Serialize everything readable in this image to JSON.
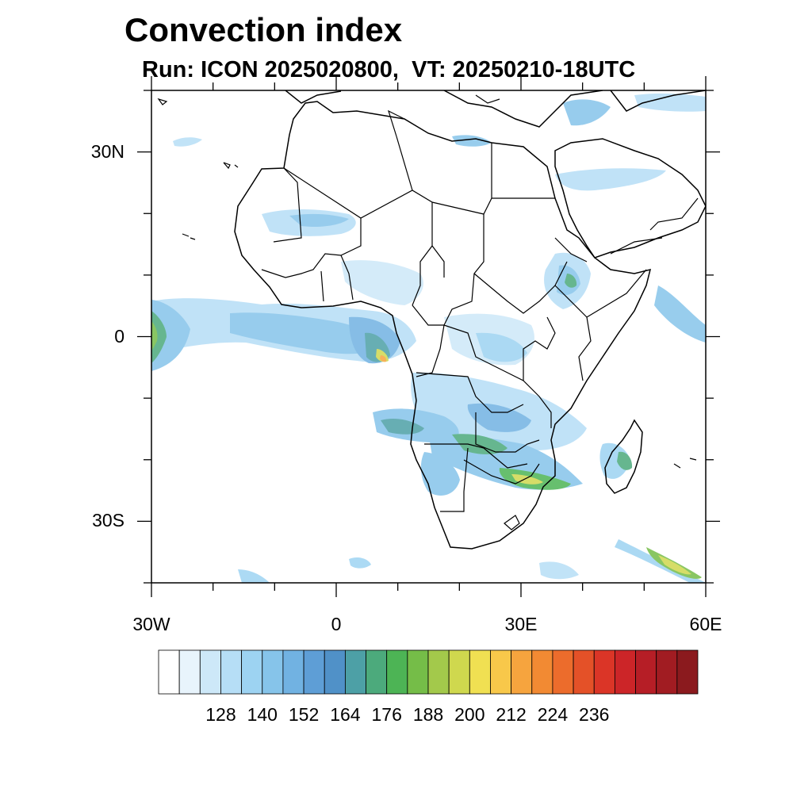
{
  "title": "Convection index",
  "subtitle": "Run: ICON 2025020800,  VT: 20250210-18UTC",
  "map": {
    "lon_range": [
      -30,
      60
    ],
    "lat_range": [
      -40,
      40
    ],
    "lon_ticks": [
      {
        "value": -30,
        "label": "30W"
      },
      {
        "value": 0,
        "label": "0"
      },
      {
        "value": 30,
        "label": "30E"
      },
      {
        "value": 60,
        "label": "60E"
      }
    ],
    "lat_ticks": [
      {
        "value": 30,
        "label": "30N"
      },
      {
        "value": 0,
        "label": "0"
      },
      {
        "value": -30,
        "label": "30S"
      }
    ],
    "coastline_color": "#000000",
    "border_color": "#000000"
  },
  "colorbar": {
    "colors": [
      "#ffffff",
      "#e8f4fc",
      "#cde8f8",
      "#b6def6",
      "#9dd3f2",
      "#86c4ea",
      "#71b2e2",
      "#5e9ed6",
      "#5091c8",
      "#4da0a6",
      "#4caa7c",
      "#4db455",
      "#75bd48",
      "#a3c94b",
      "#cfd84e",
      "#f0e052",
      "#f8c84a",
      "#f6a43e",
      "#f28a33",
      "#ec6c2c",
      "#e45128",
      "#db3527",
      "#cc2528",
      "#b61e26",
      "#a11c22",
      "#8b1a1e"
    ],
    "labels": [
      "128",
      "140",
      "152",
      "164",
      "176",
      "188",
      "200",
      "212",
      "224",
      "236"
    ]
  },
  "chart_data": {
    "type": "heatmap",
    "title": "Convection index",
    "subtitle": "Run: ICON 2025020800,  VT: 20250210-18UTC",
    "levels": [
      128,
      140,
      152,
      164,
      176,
      188,
      200,
      212,
      224,
      236
    ]
  }
}
